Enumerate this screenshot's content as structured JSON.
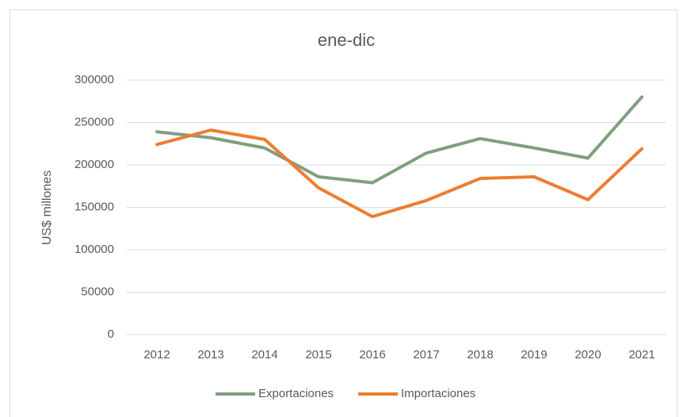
{
  "chart_data": {
    "type": "line",
    "title": "ene-dic",
    "y_label": "US$ millones",
    "categories": [
      "2012",
      "2013",
      "2014",
      "2015",
      "2016",
      "2017",
      "2018",
      "2019",
      "2020",
      "2021"
    ],
    "series": [
      {
        "name": "Exportaciones",
        "color": "#7f9f7f",
        "values": [
          239000,
          232000,
          220000,
          186000,
          179000,
          214000,
          231000,
          220000,
          208000,
          280000
        ]
      },
      {
        "name": "Importaciones",
        "color": "#ed7d31",
        "values": [
          224000,
          241000,
          230000,
          173000,
          139000,
          158000,
          184000,
          186000,
          159000,
          219000
        ]
      }
    ],
    "ylim": [
      0,
      300000
    ],
    "yticks": [
      0,
      50000,
      100000,
      150000,
      200000,
      250000,
      300000
    ],
    "grid": true,
    "legend": "bottom"
  }
}
